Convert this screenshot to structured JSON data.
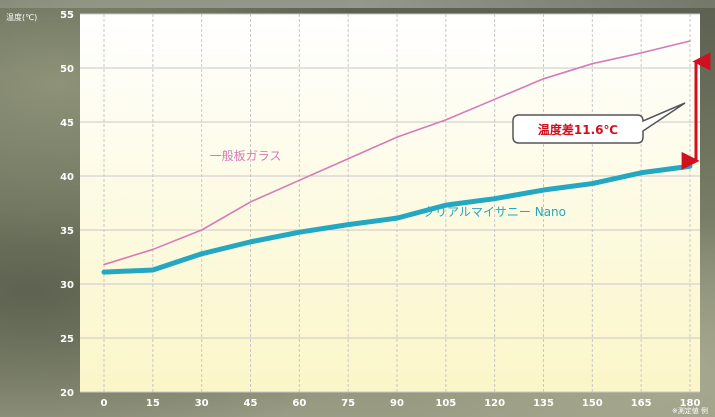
{
  "chart_data": {
    "type": "line",
    "ylabel": "温度(℃)",
    "ylim": [
      20,
      55
    ],
    "yticks": [
      20,
      25,
      30,
      35,
      40,
      45,
      50,
      55
    ],
    "xlim": [
      0,
      180
    ],
    "xticks": [
      0,
      15,
      30,
      45,
      60,
      75,
      90,
      105,
      120,
      135,
      150,
      165,
      180
    ],
    "grid": true,
    "series": [
      {
        "name": "一般板ガラス",
        "color": "#d77ab8",
        "x": [
          0,
          15,
          30,
          45,
          60,
          75,
          90,
          105,
          120,
          135,
          150,
          165,
          180
        ],
        "y": [
          31.8,
          33.2,
          35.0,
          37.6,
          39.6,
          41.6,
          43.6,
          45.2,
          47.1,
          49.0,
          50.4,
          51.4,
          52.5
        ]
      },
      {
        "name": "クリアルマイサニー Nano",
        "color": "#24a7c0",
        "x": [
          0,
          15,
          30,
          45,
          60,
          75,
          90,
          105,
          120,
          135,
          150,
          165,
          180
        ],
        "y": [
          31.1,
          31.3,
          32.8,
          33.9,
          34.8,
          35.5,
          36.1,
          37.3,
          37.9,
          38.7,
          39.3,
          40.3,
          40.9
        ]
      }
    ],
    "annotations": [
      {
        "text": "温度差11.6℃"
      }
    ],
    "note": "※測定値 例"
  },
  "colors": {
    "arrow": "#d0101e",
    "grid": "#c8c8c8",
    "plot_top": "#ffffff",
    "plot_bottom": "#fbf6c8"
  }
}
